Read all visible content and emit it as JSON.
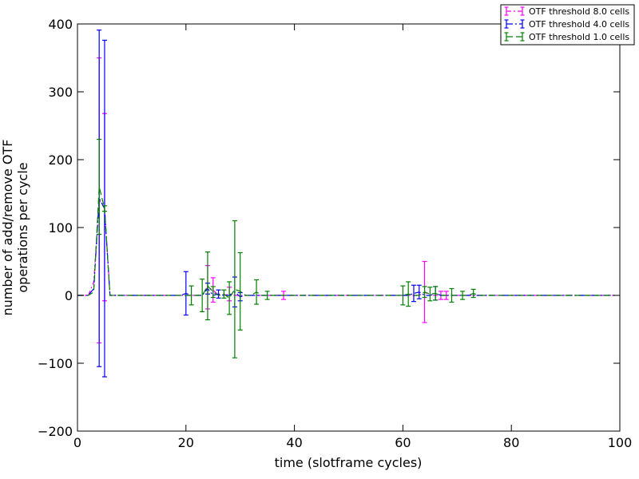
{
  "chart_data": {
    "type": "line",
    "title": "",
    "xlabel": "time (slotframe cycles)",
    "ylabel_lines": [
      "number of add/remove OTF",
      "operations per cycle"
    ],
    "xlim": [
      0,
      100
    ],
    "ylim": [
      -200,
      400
    ],
    "xticks": [
      0,
      20,
      40,
      60,
      80,
      100
    ],
    "yticks": [
      -200,
      -100,
      0,
      100,
      200,
      300,
      400
    ],
    "xtick_labels": [
      "0",
      "20",
      "40",
      "60",
      "80",
      "100"
    ],
    "ytick_labels": [
      "−200",
      "−100",
      "0",
      "100",
      "200",
      "300",
      "400"
    ],
    "grid": false,
    "legend_position": "top-right",
    "series": [
      {
        "name": "OTF threshold 8.0 cells",
        "color": "#ff00ff",
        "dash": "6,3,2,3",
        "x_range": [
          0,
          99
        ],
        "points": [
          {
            "x": 3,
            "y": 20,
            "err": 0
          },
          {
            "x": 4,
            "y": 140,
            "err": 210
          },
          {
            "x": 5,
            "y": 130,
            "err": 138
          },
          {
            "x": 6,
            "y": 0,
            "err": 0
          },
          {
            "x": 24,
            "y": 12,
            "err": 32
          },
          {
            "x": 25,
            "y": 8,
            "err": 18
          },
          {
            "x": 28,
            "y": 2,
            "err": 10
          },
          {
            "x": 38,
            "y": 0,
            "err": 6
          },
          {
            "x": 64,
            "y": 5,
            "err": 45
          },
          {
            "x": 67,
            "y": 0,
            "err": 6
          },
          {
            "x": 68,
            "y": 0,
            "err": 6
          }
        ]
      },
      {
        "name": "OTF threshold 4.0 cells",
        "color": "#0000ff",
        "dash": "8,3,2,3",
        "x_range": [
          0,
          99
        ],
        "points": [
          {
            "x": 3,
            "y": 10,
            "err": 0
          },
          {
            "x": 4,
            "y": 143,
            "err": 248
          },
          {
            "x": 5,
            "y": 128,
            "err": 248
          },
          {
            "x": 6,
            "y": 0,
            "err": 0
          },
          {
            "x": 20,
            "y": 3,
            "err": 32
          },
          {
            "x": 24,
            "y": 10,
            "err": 8
          },
          {
            "x": 26,
            "y": 2,
            "err": 6
          },
          {
            "x": 29,
            "y": 5,
            "err": 22
          },
          {
            "x": 30,
            "y": -2,
            "err": 6
          },
          {
            "x": 62,
            "y": 3,
            "err": 12
          },
          {
            "x": 63,
            "y": 5,
            "err": 10
          },
          {
            "x": 66,
            "y": 3,
            "err": 10
          }
        ]
      },
      {
        "name": "OTF threshold 1.0 cells",
        "color": "#008000",
        "dash": "8,4",
        "x_range": [
          0,
          99
        ],
        "points": [
          {
            "x": 3,
            "y": 5,
            "err": 0
          },
          {
            "x": 4,
            "y": 160,
            "err": 70
          },
          {
            "x": 5,
            "y": 128,
            "err": 4
          },
          {
            "x": 6,
            "y": 0,
            "err": 0
          },
          {
            "x": 21,
            "y": 0,
            "err": 14
          },
          {
            "x": 23,
            "y": 0,
            "err": 24
          },
          {
            "x": 24,
            "y": 14,
            "err": 50
          },
          {
            "x": 25,
            "y": 5,
            "err": 8
          },
          {
            "x": 27,
            "y": 2,
            "err": 6
          },
          {
            "x": 28,
            "y": -4,
            "err": 24
          },
          {
            "x": 29,
            "y": 9,
            "err": 101
          },
          {
            "x": 30,
            "y": 6,
            "err": 57
          },
          {
            "x": 33,
            "y": 5,
            "err": 18
          },
          {
            "x": 35,
            "y": 0,
            "err": 6
          },
          {
            "x": 60,
            "y": 0,
            "err": 14
          },
          {
            "x": 61,
            "y": 2,
            "err": 18
          },
          {
            "x": 64,
            "y": 5,
            "err": 8
          },
          {
            "x": 65,
            "y": 2,
            "err": 10
          },
          {
            "x": 66,
            "y": 3,
            "err": 10
          },
          {
            "x": 69,
            "y": 0,
            "err": 10
          },
          {
            "x": 71,
            "y": 0,
            "err": 6
          },
          {
            "x": 73,
            "y": 3,
            "err": 6
          }
        ]
      }
    ]
  }
}
